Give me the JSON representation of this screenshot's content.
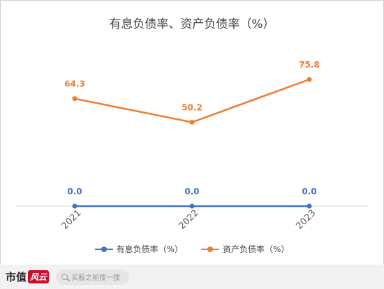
{
  "chart_data": {
    "type": "line",
    "title": "有息负债率、资产负债率（%）",
    "categories": [
      "2021",
      "2022",
      "2023"
    ],
    "series": [
      {
        "name": "有息负债率（%）",
        "values": [
          0.0,
          0.0,
          0.0
        ],
        "color": "#4472C4",
        "labels": [
          "0.0",
          "0.0",
          "0.0"
        ]
      },
      {
        "name": "资产负债率（%）",
        "values": [
          64.3,
          50.2,
          75.8
        ],
        "color": "#ED7D31",
        "labels": [
          "64.3",
          "50.2",
          "75.8"
        ]
      }
    ],
    "ylim": [
      0,
      95
    ],
    "grid": false,
    "legend": "bottom"
  },
  "footer": {
    "logo_text": "市值",
    "logo_mark": "风云",
    "search_placeholder": "买股之前搜一搜"
  }
}
